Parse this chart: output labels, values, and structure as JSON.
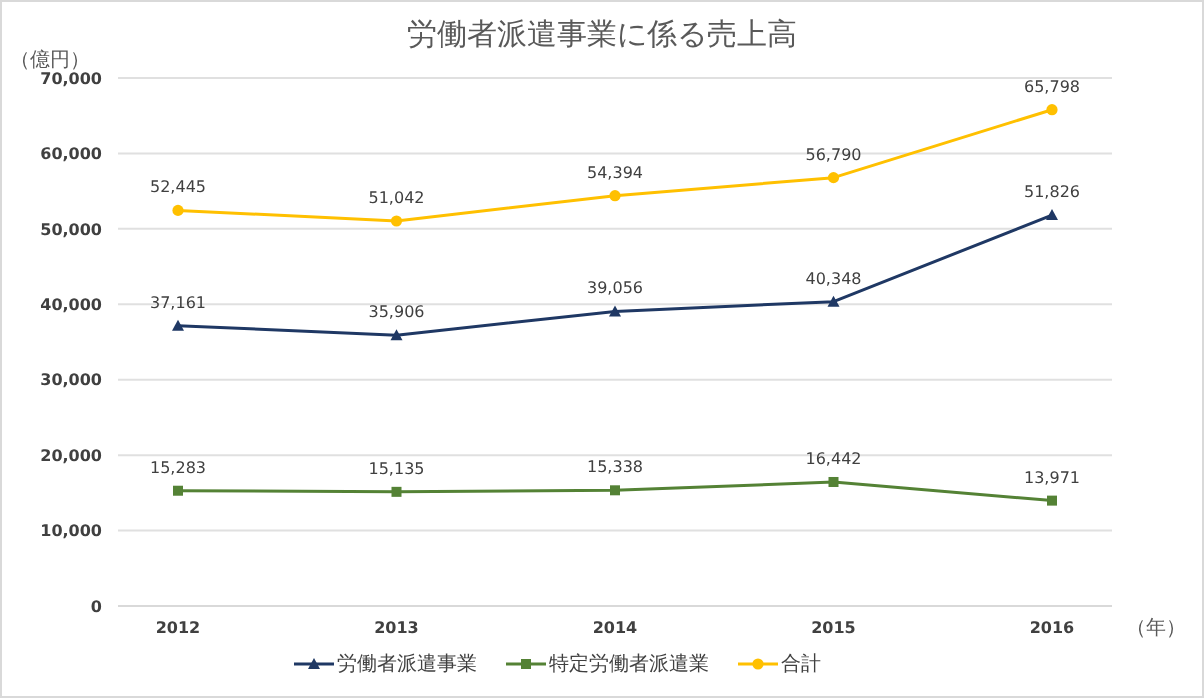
{
  "chart_data": {
    "type": "line",
    "title": "労働者派遣事業に係る売上高",
    "ylabel": "（億円）",
    "xlabel": "（年）",
    "categories": [
      "2012",
      "2013",
      "2014",
      "2015",
      "2016"
    ],
    "series": [
      {
        "name": "労働者派遣事業",
        "color": "#1f3864",
        "marker": "triangle",
        "values": [
          37161,
          35906,
          39056,
          40348,
          51826
        ],
        "value_labels": [
          "37,161",
          "35,906",
          "39,056",
          "40,348",
          "51,826"
        ]
      },
      {
        "name": "特定労働者派遣業",
        "color": "#548235",
        "marker": "square",
        "values": [
          15283,
          15135,
          15338,
          16442,
          13971
        ],
        "value_labels": [
          "15,283",
          "15,135",
          "15,338",
          "16,442",
          "13,971"
        ]
      },
      {
        "name": "合計",
        "color": "#ffc000",
        "marker": "circle",
        "values": [
          52445,
          51042,
          54394,
          56790,
          65798
        ],
        "value_labels": [
          "52,445",
          "51,042",
          "54,394",
          "56,790",
          "65,798"
        ]
      }
    ],
    "ylim": [
      0,
      70000
    ],
    "yticks": [
      0,
      {
        "value": 10000,
        "label": "10,000"
      },
      {
        "value": 20000,
        "label": "20,000"
      },
      {
        "value": 30000,
        "label": "30,000"
      },
      {
        "value": 40000,
        "label": "40,000"
      },
      {
        "value": 50000,
        "label": "50,000"
      },
      {
        "value": 60000,
        "label": "60,000"
      },
      {
        "value": 70000,
        "label": "70,000"
      }
    ],
    "grid": "y",
    "legend": "bottom"
  }
}
